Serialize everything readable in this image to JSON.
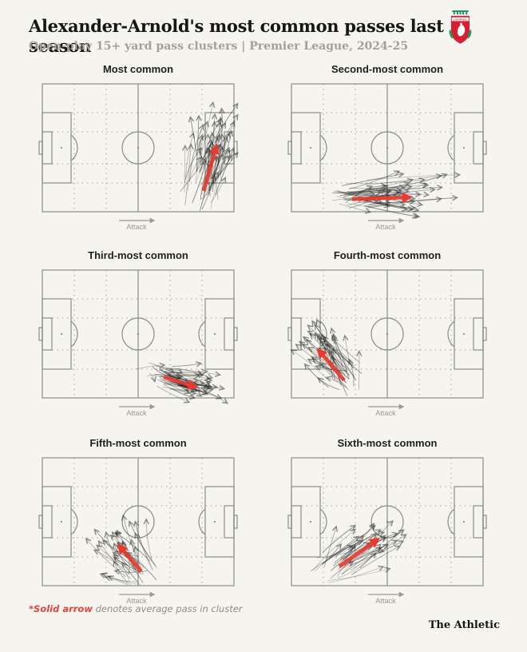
{
  "header": {
    "title": "Alexander-Arnold's most common passes last season",
    "subtitle": "Open-play 15+ yard pass clusters | Premier League, 2024-25",
    "crest_icon": "liverpool-crest"
  },
  "footnote": {
    "highlight": "*Solid arrow",
    "rest": " denotes average pass in cluster"
  },
  "brand": {
    "wordmark": "The Athletic"
  },
  "colors": {
    "background": "#f5f4ee",
    "accent_red": "#e83a2e",
    "pitch_line": "#8c8c86",
    "grid_dot": "#9c9a92",
    "pass_line": "#222222",
    "attack_text": "#9a9890",
    "crest_green": "#1c9c5e",
    "crest_red": "#d62031",
    "crest_white": "#ffffff"
  },
  "pitch": {
    "attack_label": "Attack",
    "length": 120,
    "width": 80,
    "grid_vertical_x": [
      20,
      40,
      80,
      100
    ],
    "grid_horizontal_y": [
      18,
      30,
      50,
      62
    ]
  },
  "chart_data": {
    "type": "scatter",
    "subtype": "pass-cluster-small-multiples",
    "title": "Alexander-Arnold's most common passes last season",
    "subtitle": "Open-play 15+ yard pass clusters | Premier League, 2024-25",
    "coordinate_system": {
      "x_range": [
        0,
        120
      ],
      "y_range": [
        0,
        80
      ],
      "y_origin": "top",
      "attack_direction": "left-to-right"
    },
    "legend_note": "*Solid arrow denotes average pass in cluster",
    "panels": [
      {
        "label": "Most common",
        "n_passes": 55,
        "seed": 11,
        "start_center": [
          100,
          63
        ],
        "start_spread": [
          6,
          8
        ],
        "delta_mean": [
          8,
          -27
        ],
        "delta_spread": [
          7,
          8
        ],
        "avg_pass": {
          "from": [
            101,
            67
          ],
          "to": [
            109,
            39
          ]
        }
      },
      {
        "label": "Second-most common",
        "n_passes": 50,
        "seed": 22,
        "start_center": [
          38,
          70
        ],
        "start_spread": [
          9,
          4
        ],
        "delta_mean": [
          36,
          -1
        ],
        "delta_spread": [
          11,
          5
        ],
        "avg_pass": {
          "from": [
            38,
            72
          ],
          "to": [
            74,
            71
          ]
        }
      },
      {
        "label": "Third-most common",
        "n_passes": 48,
        "seed": 33,
        "start_center": [
          75,
          66
        ],
        "start_spread": [
          6,
          4
        ],
        "delta_mean": [
          20,
          6
        ],
        "delta_spread": [
          8,
          4
        ],
        "avg_pass": {
          "from": [
            76,
            67
          ],
          "to": [
            96,
            73
          ]
        }
      },
      {
        "label": "Fourth-most common",
        "n_passes": 42,
        "seed": 44,
        "start_center": [
          33,
          67
        ],
        "start_spread": [
          5,
          6
        ],
        "delta_mean": [
          -16,
          -19
        ],
        "delta_spread": [
          7,
          7
        ],
        "avg_pass": {
          "from": [
            33,
            69
          ],
          "to": [
            17,
            50
          ]
        }
      },
      {
        "label": "Fifth-most common",
        "n_passes": 38,
        "seed": 55,
        "start_center": [
          61,
          70
        ],
        "start_spread": [
          5,
          5
        ],
        "delta_mean": [
          -13,
          -15
        ],
        "delta_spread": [
          8,
          7
        ],
        "avg_pass": {
          "from": [
            62,
            71
          ],
          "to": [
            48,
            55
          ]
        }
      },
      {
        "label": "Sixth-most common",
        "n_passes": 36,
        "seed": 66,
        "start_center": [
          30,
          68
        ],
        "start_spread": [
          7,
          5
        ],
        "delta_mean": [
          24,
          -16
        ],
        "delta_spread": [
          8,
          6
        ],
        "avg_pass": {
          "from": [
            30,
            68
          ],
          "to": [
            54,
            51
          ]
        }
      }
    ]
  }
}
